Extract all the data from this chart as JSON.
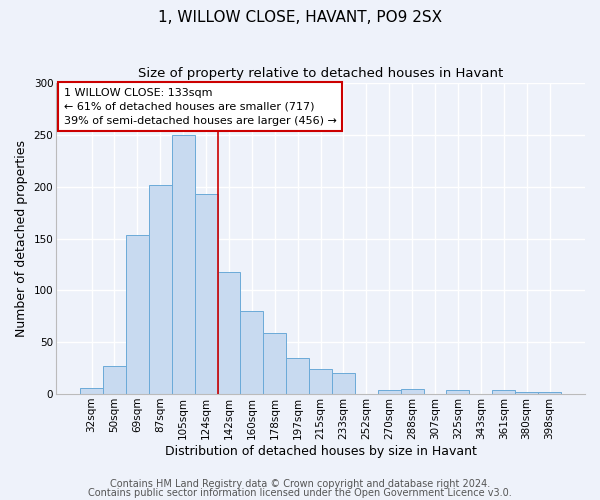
{
  "title": "1, WILLOW CLOSE, HAVANT, PO9 2SX",
  "subtitle": "Size of property relative to detached houses in Havant",
  "xlabel": "Distribution of detached houses by size in Havant",
  "ylabel": "Number of detached properties",
  "bar_labels": [
    "32sqm",
    "50sqm",
    "69sqm",
    "87sqm",
    "105sqm",
    "124sqm",
    "142sqm",
    "160sqm",
    "178sqm",
    "197sqm",
    "215sqm",
    "233sqm",
    "252sqm",
    "270sqm",
    "288sqm",
    "307sqm",
    "325sqm",
    "343sqm",
    "361sqm",
    "380sqm",
    "398sqm"
  ],
  "bar_heights": [
    6,
    27,
    153,
    202,
    250,
    193,
    118,
    80,
    59,
    35,
    24,
    20,
    0,
    4,
    5,
    0,
    4,
    0,
    4,
    2,
    2
  ],
  "bar_color": "#c8daf0",
  "bar_edge_color": "#6baad8",
  "ylim": [
    0,
    300
  ],
  "yticks": [
    0,
    50,
    100,
    150,
    200,
    250,
    300
  ],
  "vline_x_index": 5.5,
  "vline_color": "#cc0000",
  "annotation_text": "1 WILLOW CLOSE: 133sqm\n← 61% of detached houses are smaller (717)\n39% of semi-detached houses are larger (456) →",
  "annotation_box_color": "#ffffff",
  "annotation_box_edge_color": "#cc0000",
  "footer1": "Contains HM Land Registry data © Crown copyright and database right 2024.",
  "footer2": "Contains public sector information licensed under the Open Government Licence v3.0.",
  "bg_color": "#eef2fa",
  "grid_color": "#ffffff",
  "title_fontsize": 11,
  "subtitle_fontsize": 9.5,
  "axis_label_fontsize": 9,
  "tick_fontsize": 7.5,
  "annotation_fontsize": 8,
  "footer_fontsize": 7
}
